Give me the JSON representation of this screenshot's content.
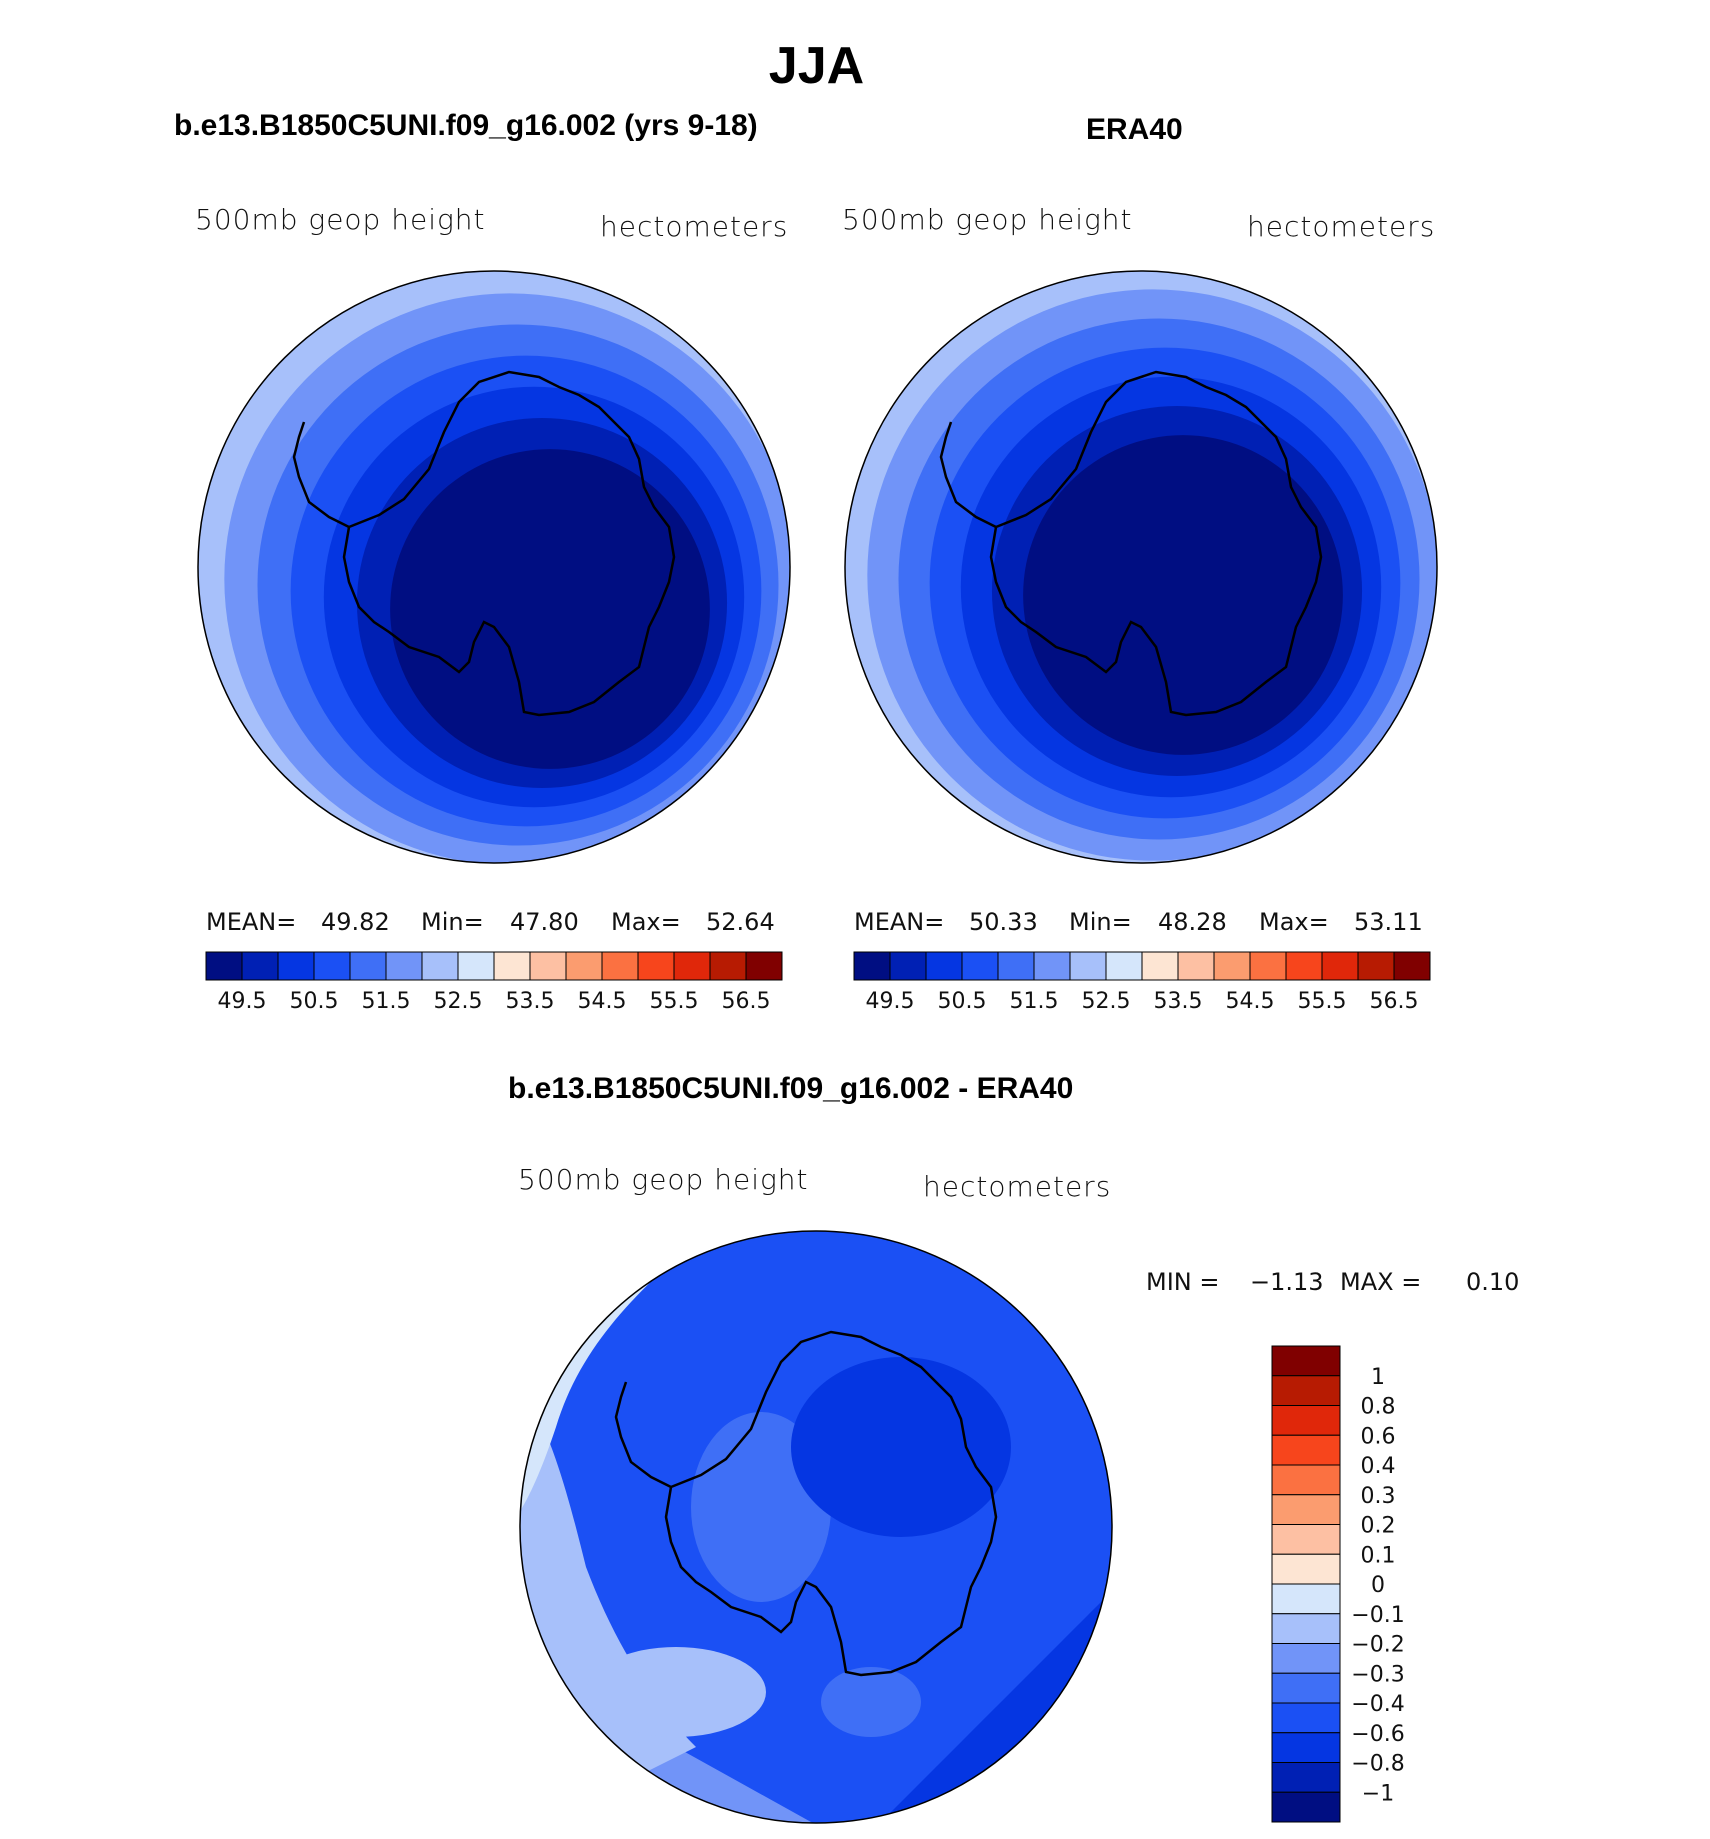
{
  "figure_title": "JJA",
  "panels": [
    {
      "title": "b.e13.B1850C5UNI.f09_g16.002 (yrs 9-18)",
      "left_label": "500mb geop height",
      "right_label": "hectometers",
      "stats": {
        "mean_label": "MEAN=",
        "mean": "49.82",
        "min_label": "Min=",
        "min": "47.80",
        "max_label": "Max=",
        "max": "52.64"
      }
    },
    {
      "title": "ERA40",
      "left_label": "500mb geop height",
      "right_label": "hectometers",
      "stats": {
        "mean_label": "MEAN=",
        "mean": "50.33",
        "min_label": "Min=",
        "min": "48.28",
        "max_label": "Max=",
        "max": "53.11"
      }
    },
    {
      "title": "b.e13.B1850C5UNI.f09_g16.002 - ERA40",
      "left_label": "500mb geop height",
      "right_label": "hectometers",
      "stats": {
        "min_label": "MIN =",
        "min": "−1.13",
        "max_label": "MAX =",
        "max": "0.10"
      }
    }
  ],
  "chart_data": [
    {
      "type": "heatmap",
      "projection": "south polar stereographic",
      "variable": "500mb geop height",
      "units": "hectometers",
      "mean": 49.82,
      "min": 47.8,
      "max": 52.64,
      "colorbar_levels": [
        49.5,
        50,
        50.5,
        51,
        51.5,
        52,
        52.5,
        53,
        53.5,
        54,
        54.5,
        55,
        55.5,
        56,
        56.5
      ],
      "colorbar_tick_labels": [
        "49.5",
        "50.5",
        "51.5",
        "52.5",
        "53.5",
        "54.5",
        "55.5",
        "56.5"
      ],
      "colorbar_colors": [
        "#000e82",
        "#0020b4",
        "#0536e2",
        "#1b50f4",
        "#3f6ff6",
        "#7194f8",
        "#a7c0fa",
        "#d5e6fb",
        "#fde5d3",
        "#fdc0a3",
        "#fb9c6f",
        "#fb7141",
        "#f7451c",
        "#e0270a",
        "#b71b02",
        "#800000"
      ]
    },
    {
      "type": "heatmap",
      "projection": "south polar stereographic",
      "variable": "500mb geop height",
      "units": "hectometers",
      "mean": 50.33,
      "min": 48.28,
      "max": 53.11,
      "colorbar_levels": [
        49.5,
        50,
        50.5,
        51,
        51.5,
        52,
        52.5,
        53,
        53.5,
        54,
        54.5,
        55,
        55.5,
        56,
        56.5
      ],
      "colorbar_tick_labels": [
        "49.5",
        "50.5",
        "51.5",
        "52.5",
        "53.5",
        "54.5",
        "55.5",
        "56.5"
      ],
      "colorbar_colors": [
        "#000e82",
        "#0020b4",
        "#0536e2",
        "#1b50f4",
        "#3f6ff6",
        "#7194f8",
        "#a7c0fa",
        "#d5e6fb",
        "#fde5d3",
        "#fdc0a3",
        "#fb9c6f",
        "#fb7141",
        "#f7451c",
        "#e0270a",
        "#b71b02",
        "#800000"
      ]
    },
    {
      "type": "heatmap",
      "projection": "south polar stereographic",
      "variable": "500mb geop height",
      "units": "hectometers",
      "min": -1.13,
      "max": 0.1,
      "colorbar_levels": [
        1,
        0.8,
        0.6,
        0.4,
        0.3,
        0.2,
        0.1,
        0,
        -0.1,
        -0.2,
        -0.3,
        -0.4,
        -0.6,
        -0.8,
        -1
      ],
      "colorbar_tick_labels": [
        "1",
        "0.8",
        "0.6",
        "0.4",
        "0.3",
        "0.2",
        "0.1",
        "0",
        "−0.1",
        "−0.2",
        "−0.3",
        "−0.4",
        "−0.6",
        "−0.8",
        "−1"
      ],
      "colorbar_colors": [
        "#800000",
        "#b71b02",
        "#e0270a",
        "#f7451c",
        "#fb7141",
        "#fb9c6f",
        "#fdc0a3",
        "#fde5d3",
        "#d5e6fb",
        "#a7c0fa",
        "#7194f8",
        "#3f6ff6",
        "#1b50f4",
        "#0536e2",
        "#0020b4",
        "#000e82"
      ]
    }
  ]
}
